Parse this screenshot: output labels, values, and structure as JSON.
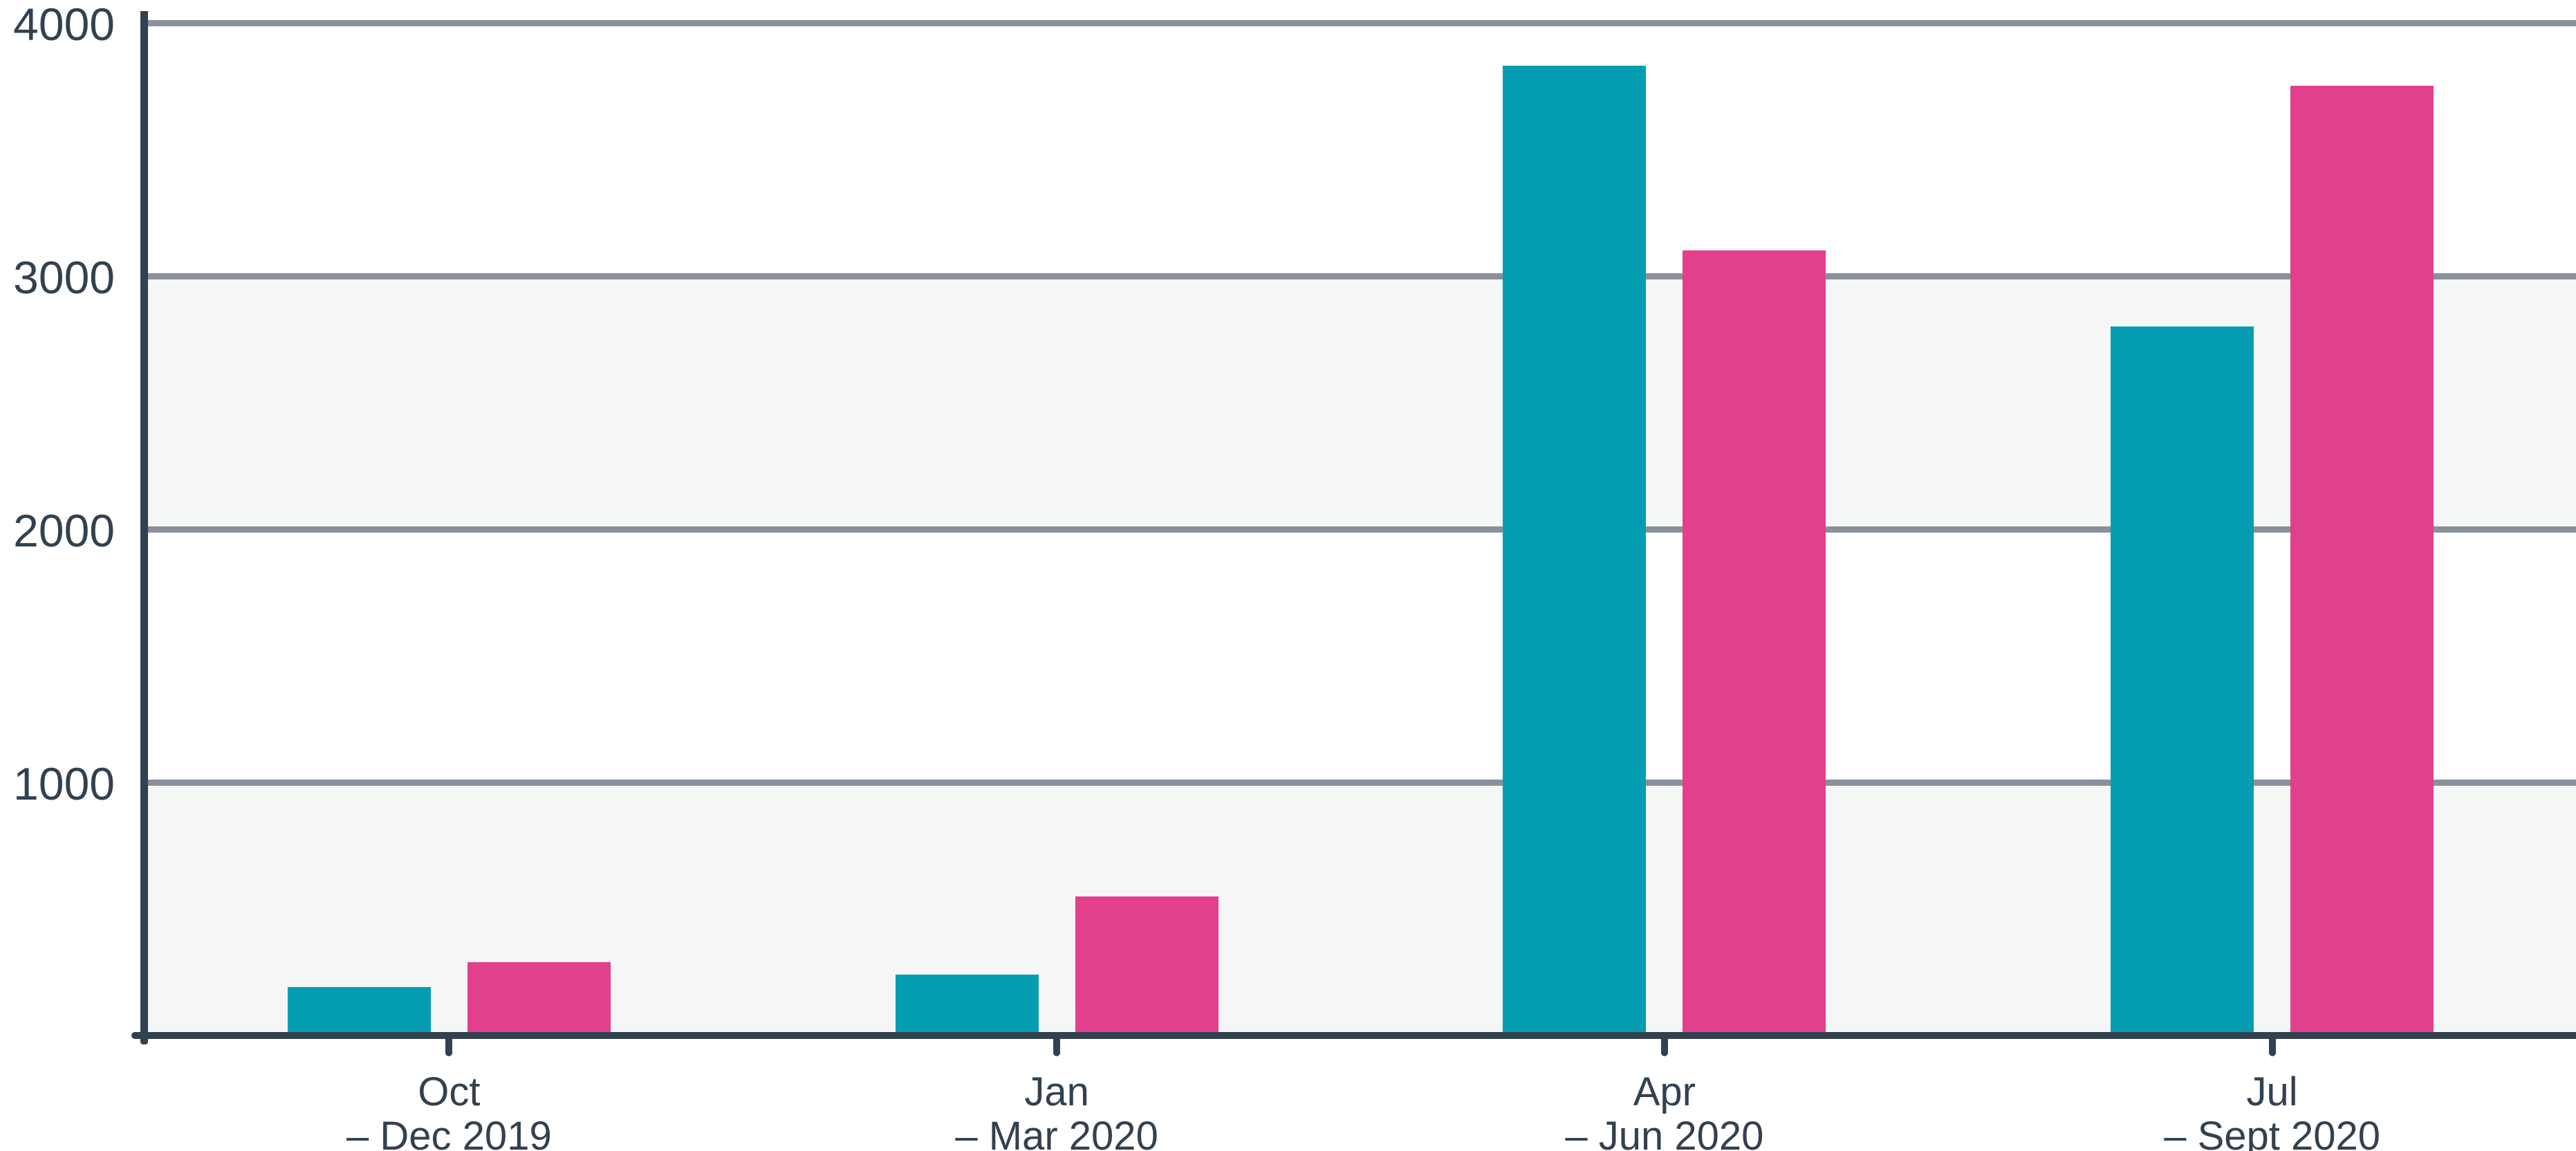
{
  "colors": {
    "teal": "#049DB2",
    "pink": "#E2408C",
    "axis": "#324150",
    "text": "#324150",
    "gridline": "#8A919C",
    "band": "#F5F6F6",
    "background": "#FFFFFF"
  },
  "chart_data": {
    "type": "bar",
    "title": "",
    "xlabel": "",
    "ylabel": "",
    "legend": "none",
    "grid": "horizontal",
    "band_fill": "alternating-light-gray",
    "ylim": [
      0,
      4090
    ],
    "yticks": [
      1000,
      2000,
      3000,
      4000
    ],
    "categories": [
      {
        "line1": "Oct",
        "line2": "– Dec 2019"
      },
      {
        "line1": "Jan",
        "line2": "– Mar 2020"
      },
      {
        "line1": "Apr",
        "line2": "– Jun 2020"
      },
      {
        "line1": "Jul",
        "line2": "– Sept 2020"
      }
    ],
    "series": [
      {
        "name": "teal-series",
        "color": "#049DB2",
        "values": [
          190,
          240,
          3830,
          2800
        ]
      },
      {
        "name": "pink-series",
        "color": "#E2408C",
        "values": [
          290,
          550,
          3100,
          3750
        ]
      }
    ]
  }
}
